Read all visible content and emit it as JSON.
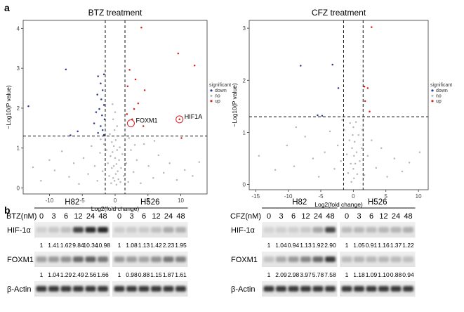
{
  "panels": {
    "a": "a",
    "b": "b"
  },
  "colors": {
    "up": "#d62020",
    "down": "#2b3a8f",
    "no": "#b8b8b8",
    "frame": "#333333",
    "band": "#1a1a1a"
  },
  "chart_data": [
    {
      "type": "scatter",
      "title": "BTZ treatment",
      "xlabel": "Log2(fold change)",
      "ylabel": "−Log10(P value)",
      "xlim": [
        -14,
        14
      ],
      "ylim": [
        -0.15,
        4.2
      ],
      "xticks": [
        -10,
        -5,
        0,
        5,
        10
      ],
      "yticks": [
        0,
        1,
        2,
        3,
        4
      ],
      "xtick_labels": [
        "-10",
        "-5",
        "0",
        "5",
        "10"
      ],
      "ytick_labels": [
        "0",
        "1",
        "2",
        "3",
        "4"
      ],
      "vlines": [
        -1.5,
        1.5
      ],
      "hline": 1.3,
      "legend": {
        "title": "significant",
        "entries": [
          "down",
          "no",
          "up"
        ],
        "placement": "right"
      },
      "annotations": [
        {
          "label": "FOXM1",
          "x": 2.4,
          "y": 1.62,
          "circled": true
        },
        {
          "label": "HIF1A",
          "x": 9.8,
          "y": 1.72,
          "circled": true
        }
      ],
      "points": {
        "up": [
          [
            4.0,
            4.02
          ],
          [
            9.6,
            3.37
          ],
          [
            12.1,
            3.07
          ],
          [
            2.2,
            2.96
          ],
          [
            3.1,
            2.72
          ],
          [
            1.9,
            2.55
          ],
          [
            4.5,
            2.45
          ],
          [
            3.5,
            2.12
          ],
          [
            2.9,
            1.98
          ],
          [
            1.8,
            1.85
          ],
          [
            2.6,
            1.72
          ],
          [
            4.3,
            1.55
          ],
          [
            9.8,
            1.72
          ],
          [
            10.1,
            1.25
          ]
        ],
        "down": [
          [
            -7.5,
            2.97
          ],
          [
            -2.6,
            2.8
          ],
          [
            -1.7,
            2.85
          ],
          [
            -2.2,
            2.62
          ],
          [
            -1.9,
            2.45
          ],
          [
            -2.7,
            2.34
          ],
          [
            -2.1,
            2.22
          ],
          [
            -1.7,
            2.08
          ],
          [
            -2.4,
            1.98
          ],
          [
            -2.9,
            1.9
          ],
          [
            -2.0,
            1.82
          ],
          [
            -1.6,
            1.72
          ],
          [
            -3.2,
            1.62
          ],
          [
            -2.2,
            1.55
          ],
          [
            -1.9,
            1.45
          ],
          [
            -2.6,
            1.38
          ],
          [
            -1.7,
            1.33
          ],
          [
            -13.2,
            2.05
          ],
          [
            -5.7,
            1.42
          ],
          [
            -6.8,
            1.32
          ]
        ],
        "no": [
          [
            -12.5,
            0.52
          ],
          [
            -11.3,
            0.18
          ],
          [
            -9.2,
            0.44
          ],
          [
            -8.1,
            0.92
          ],
          [
            -7.0,
            0.28
          ],
          [
            -6.3,
            0.62
          ],
          [
            -5.5,
            0.1
          ],
          [
            -4.8,
            0.75
          ],
          [
            -4.1,
            0.35
          ],
          [
            -3.6,
            1.05
          ],
          [
            -3.1,
            0.55
          ],
          [
            -2.7,
            0.18
          ],
          [
            -2.3,
            0.88
          ],
          [
            -1.9,
            0.42
          ],
          [
            -1.3,
            0.95
          ],
          [
            -1.1,
            0.62
          ],
          [
            -0.9,
            0.3
          ],
          [
            -0.8,
            1.35
          ],
          [
            -0.7,
            0.8
          ],
          [
            -0.6,
            0.12
          ],
          [
            -0.5,
            1.15
          ],
          [
            -0.5,
            0.5
          ],
          [
            -0.4,
            2.1
          ],
          [
            -0.4,
            0.9
          ],
          [
            -0.3,
            1.72
          ],
          [
            -0.3,
            0.25
          ],
          [
            -0.2,
            1.05
          ],
          [
            -0.2,
            0.55
          ],
          [
            -0.1,
            1.45
          ],
          [
            -0.1,
            0.18
          ],
          [
            0.0,
            0.75
          ],
          [
            0.0,
            1.9
          ],
          [
            0.1,
            0.35
          ],
          [
            0.1,
            1.2
          ],
          [
            0.2,
            0.6
          ],
          [
            0.2,
            0.08
          ],
          [
            0.3,
            0.95
          ],
          [
            0.3,
            1.55
          ],
          [
            0.4,
            0.42
          ],
          [
            0.5,
            0.22
          ],
          [
            0.6,
            0.7
          ],
          [
            0.7,
            1.02
          ],
          [
            0.8,
            0.15
          ],
          [
            0.9,
            0.5
          ],
          [
            1.1,
            0.85
          ],
          [
            1.3,
            0.3
          ],
          [
            1.7,
            0.62
          ],
          [
            2.0,
            0.15
          ],
          [
            2.4,
            0.95
          ],
          [
            2.8,
            0.4
          ],
          [
            3.3,
            0.7
          ],
          [
            3.9,
            0.12
          ],
          [
            4.4,
            1.1
          ],
          [
            5.1,
            0.55
          ],
          [
            5.8,
            0.25
          ],
          [
            6.6,
            0.82
          ],
          [
            7.4,
            0.38
          ],
          [
            8.3,
            0.62
          ],
          [
            9.4,
            0.2
          ],
          [
            10.6,
            0.45
          ],
          [
            11.8,
            0.3
          ],
          [
            12.8,
            0.65
          ],
          [
            -2.2,
            1.22
          ],
          [
            -1.7,
            1.1
          ],
          [
            2.1,
            1.25
          ],
          [
            3.0,
            1.08
          ],
          [
            -10.0,
            0.7
          ],
          [
            6.0,
            1.18
          ]
        ]
      }
    },
    {
      "type": "scatter",
      "title": "CFZ treatment",
      "xlabel": "Log2(fold change)",
      "ylabel": "−Log10(P value)",
      "xlim": [
        -16,
        11.5
      ],
      "ylim": [
        -0.1,
        3.15
      ],
      "xticks": [
        -15,
        -10,
        -5,
        0,
        5,
        10
      ],
      "yticks": [
        0,
        1,
        2,
        3
      ],
      "xtick_labels": [
        "-15",
        "-10",
        "-5",
        "0",
        "5",
        "10"
      ],
      "ytick_labels": [
        "0",
        "1",
        "2",
        "3"
      ],
      "vlines": [
        -1.5,
        1.5
      ],
      "hline": 1.3,
      "legend": {
        "title": "significant",
        "entries": [
          "down",
          "no",
          "up"
        ],
        "placement": "right"
      },
      "annotations": [],
      "points": {
        "up": [
          [
            2.8,
            3.02
          ],
          [
            1.7,
            1.88
          ],
          [
            2.2,
            1.85
          ],
          [
            1.8,
            1.6
          ],
          [
            2.5,
            1.4
          ]
        ],
        "down": [
          [
            -8.1,
            2.28
          ],
          [
            -3.2,
            2.3
          ],
          [
            -2.3,
            1.85
          ],
          [
            -5.5,
            1.33
          ],
          [
            -4.8,
            1.32
          ]
        ],
        "no": [
          [
            -14.5,
            0.55
          ],
          [
            -12.0,
            0.28
          ],
          [
            -10.2,
            0.75
          ],
          [
            -9.1,
            0.35
          ],
          [
            -7.4,
            0.92
          ],
          [
            -6.2,
            0.5
          ],
          [
            -5.3,
            0.15
          ],
          [
            -4.4,
            0.62
          ],
          [
            -3.6,
            1.02
          ],
          [
            -2.9,
            0.3
          ],
          [
            -2.4,
            0.75
          ],
          [
            -1.9,
            0.45
          ],
          [
            -1.4,
            1.05
          ],
          [
            -1.0,
            0.58
          ],
          [
            -0.8,
            0.22
          ],
          [
            -0.6,
            0.85
          ],
          [
            -0.5,
            1.18
          ],
          [
            -0.4,
            0.4
          ],
          [
            -0.3,
            0.05
          ],
          [
            -0.2,
            0.7
          ],
          [
            -0.1,
            0.95
          ],
          [
            0.0,
            0.3
          ],
          [
            0.0,
            1.1
          ],
          [
            0.1,
            0.55
          ],
          [
            0.1,
            0.12
          ],
          [
            0.2,
            0.82
          ],
          [
            0.3,
            0.4
          ],
          [
            0.4,
            1.2
          ],
          [
            0.5,
            0.62
          ],
          [
            0.6,
            0.2
          ],
          [
            0.8,
            0.95
          ],
          [
            1.0,
            0.45
          ],
          [
            1.3,
            0.7
          ],
          [
            1.7,
            0.18
          ],
          [
            2.2,
            0.55
          ],
          [
            2.8,
            0.85
          ],
          [
            3.5,
            0.32
          ],
          [
            4.3,
            0.7
          ],
          [
            5.2,
            0.15
          ],
          [
            6.3,
            0.5
          ],
          [
            7.5,
            0.25
          ],
          [
            8.6,
            0.42
          ],
          [
            10.2,
            0.62
          ],
          [
            -1.7,
            1.24
          ],
          [
            1.4,
            1.05
          ],
          [
            -8.8,
            1.1
          ]
        ]
      }
    }
  ],
  "blots": [
    {
      "drug_label": "BTZ(nM)",
      "groups": [
        "H82",
        "H526"
      ],
      "doses": [
        "0",
        "3",
        "6",
        "12",
        "24",
        "48",
        "0",
        "3",
        "6",
        "12",
        "24",
        "48"
      ],
      "rows": [
        {
          "protein": "HIF-1α",
          "intensities": [
            0.12,
            0.16,
            0.2,
            0.8,
            0.92,
            0.95,
            0.14,
            0.14,
            0.15,
            0.2,
            0.3,
            0.28
          ],
          "values": [
            "1",
            "1.41",
            "1.62",
            "9.84",
            "10.34",
            "10.98",
            "1",
            "1.08",
            "1.13",
            "1.42",
            "2.23",
            "1.95"
          ]
        },
        {
          "protein": "FOXM1",
          "intensities": [
            0.35,
            0.38,
            0.42,
            0.62,
            0.66,
            0.55,
            0.38,
            0.36,
            0.33,
            0.42,
            0.55,
            0.5
          ],
          "values": [
            "1",
            "1.04",
            "1.29",
            "2.49",
            "2.56",
            "1.66",
            "1",
            "0.98",
            "0.88",
            "1.15",
            "1.87",
            "1.61"
          ]
        },
        {
          "protein": "β-Actin",
          "intensities": [
            0.85,
            0.85,
            0.85,
            0.85,
            0.85,
            0.85,
            0.85,
            0.85,
            0.85,
            0.85,
            0.85,
            0.85
          ],
          "values": []
        }
      ]
    },
    {
      "drug_label": "CFZ(nM)",
      "groups": [
        "H82",
        "H526"
      ],
      "doses": [
        "0",
        "3",
        "6",
        "12",
        "24",
        "48",
        "0",
        "3",
        "6",
        "12",
        "24",
        "48"
      ],
      "rows": [
        {
          "protein": "HIF-1α",
          "intensities": [
            0.1,
            0.12,
            0.12,
            0.15,
            0.32,
            0.78,
            0.22,
            0.24,
            0.22,
            0.24,
            0.25,
            0.28
          ],
          "values": [
            "1",
            "1.04",
            "0.94",
            "1.13",
            "1.92",
            "2.90",
            "1",
            "1.05",
            "0.91",
            "1.16",
            "1.37",
            "1.22"
          ]
        },
        {
          "protein": "FOXM1",
          "intensities": [
            0.18,
            0.3,
            0.38,
            0.48,
            0.62,
            0.85,
            0.22,
            0.25,
            0.23,
            0.24,
            0.22,
            0.2
          ],
          "values": [
            "1",
            "2.09",
            "2.98",
            "3.97",
            "5.78",
            "7.58",
            "1",
            "1.18",
            "1.09",
            "1.10",
            "0.88",
            "0.94"
          ]
        },
        {
          "protein": "β-Actin",
          "intensities": [
            0.85,
            0.85,
            0.85,
            0.85,
            0.85,
            0.85,
            0.85,
            0.85,
            0.85,
            0.85,
            0.85,
            0.85
          ],
          "values": []
        }
      ]
    }
  ]
}
